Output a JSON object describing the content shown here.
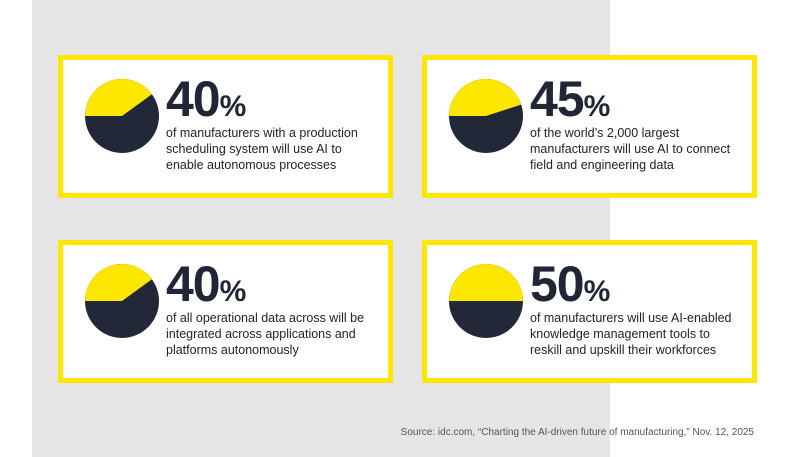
{
  "colors": {
    "accent": "#fde600",
    "dark": "#232838",
    "background": "#e5e5e7"
  },
  "chart_data": [
    {
      "type": "pie",
      "value": 40,
      "value_label": "40",
      "unit": "%",
      "description": "of manufacturers with a production scheduling system will use AI to enable autonomous processes"
    },
    {
      "type": "pie",
      "value": 45,
      "value_label": "45",
      "unit": "%",
      "description": "of the world’s 2,000 largest manufacturers will use AI to connect field and engineering data"
    },
    {
      "type": "pie",
      "value": 40,
      "value_label": "40",
      "unit": "%",
      "description": "of all operational data across will be integrated across applications and platforms autonomously"
    },
    {
      "type": "pie",
      "value": 50,
      "value_label": "50",
      "unit": "%",
      "description": "of manufacturers will use AI-enabled knowledge management tools to reskill and upskill their workforces"
    }
  ],
  "source": "Source: idc.com, “Charting the AI-driven future of manufacturing,” Nov. 12, 2025"
}
